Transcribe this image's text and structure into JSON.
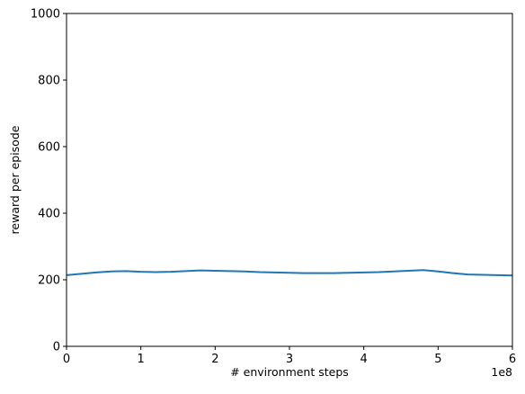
{
  "chart_data": {
    "type": "line",
    "title": "",
    "xlabel": "# environment steps",
    "ylabel": "reward per episode",
    "x_offset_label": "1e8",
    "xlim": [
      0,
      6
    ],
    "ylim": [
      0,
      1000
    ],
    "x_ticks": [
      "0",
      "1",
      "2",
      "3",
      "4",
      "5",
      "6"
    ],
    "y_ticks": [
      "0",
      "200",
      "400",
      "600",
      "800",
      "1000"
    ],
    "grid": false,
    "legend": "none",
    "series": [
      {
        "color": "#1f77b4",
        "x": [
          0,
          0.2,
          0.4,
          0.6,
          0.8,
          1.0,
          1.2,
          1.4,
          1.6,
          1.8,
          2.0,
          2.2,
          2.4,
          2.6,
          2.8,
          3.0,
          3.2,
          3.4,
          3.6,
          3.8,
          4.0,
          4.2,
          4.4,
          4.6,
          4.8,
          5.0,
          5.2,
          5.4,
          5.6,
          5.8,
          6.0
        ],
        "y": [
          214,
          218,
          222,
          225,
          226,
          224,
          223,
          224,
          226,
          228,
          227,
          226,
          225,
          223,
          222,
          221,
          220,
          220,
          220,
          221,
          222,
          223,
          225,
          227,
          229,
          225,
          220,
          216,
          215,
          214,
          213
        ]
      }
    ]
  }
}
